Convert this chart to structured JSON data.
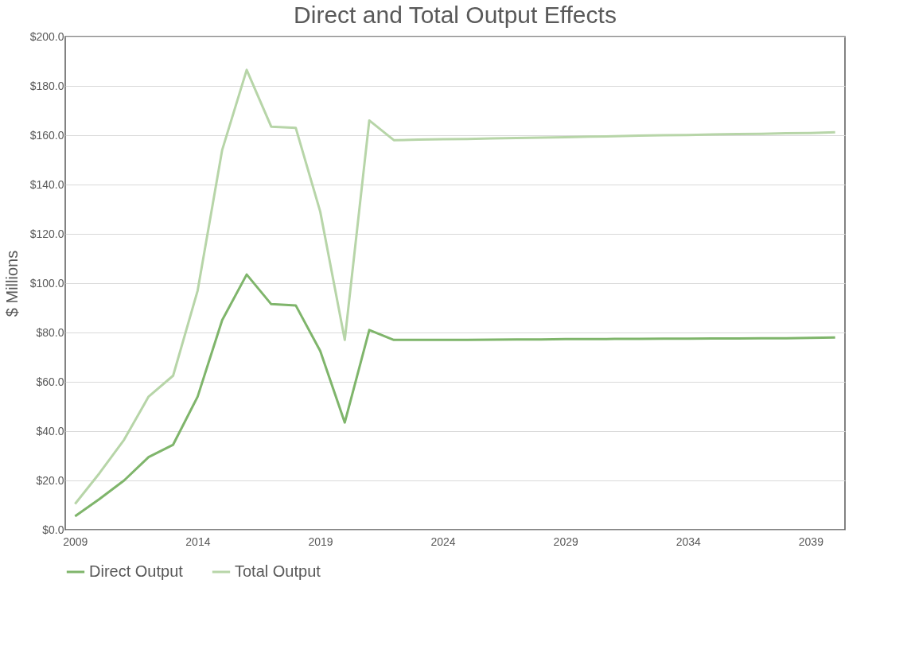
{
  "chart_data": {
    "type": "line",
    "title": "Direct and Total Output Effects",
    "ylabel": "$ Millions",
    "categories": [
      "2009",
      null,
      null,
      null,
      null,
      "2014",
      null,
      null,
      null,
      null,
      "2019",
      null,
      null,
      null,
      null,
      "2024",
      null,
      null,
      null,
      null,
      "2029",
      null,
      null,
      null,
      null,
      "2034",
      null,
      null,
      null,
      null,
      "2039",
      null
    ],
    "series": [
      {
        "name": "Direct Output",
        "color": "#7fb56b",
        "values": [
          5.5,
          12.5,
          20,
          29.5,
          34.5,
          54,
          85,
          103.5,
          91.5,
          91,
          72.5,
          43.5,
          81,
          77,
          77,
          77,
          77,
          77.1,
          77.2,
          77.2,
          77.3,
          77.3,
          77.4,
          77.4,
          77.5,
          77.5,
          77.6,
          77.6,
          77.7,
          77.7,
          77.8,
          78
        ]
      },
      {
        "name": "Total Output",
        "color": "#b7d5a8",
        "values": [
          10.5,
          23,
          36.5,
          54,
          62.5,
          97,
          154,
          186.5,
          163.5,
          163,
          129,
          77,
          166,
          158,
          158.2,
          158.4,
          158.5,
          158.7,
          158.9,
          159,
          159.2,
          159.4,
          159.6,
          159.8,
          160,
          160.1,
          160.3,
          160.5,
          160.6,
          160.8,
          160.9,
          161.2
        ]
      }
    ],
    "ylim": [
      0,
      200
    ],
    "yticks": [
      {
        "value": 0,
        "label": "$0.0"
      },
      {
        "value": 20,
        "label": "$20.0"
      },
      {
        "value": 40,
        "label": "$40.0"
      },
      {
        "value": 60,
        "label": "$60.0"
      },
      {
        "value": 80,
        "label": "$80.0"
      },
      {
        "value": 100,
        "label": "$100.0"
      },
      {
        "value": 120,
        "label": "$120.0"
      },
      {
        "value": 140,
        "label": "$140.0"
      },
      {
        "value": 160,
        "label": "$160.0"
      },
      {
        "value": 180,
        "label": "$180.0"
      },
      {
        "value": 200,
        "label": "$200.0"
      }
    ],
    "grid": "y",
    "legend": "bottom",
    "marker": "none",
    "line_style": "solid"
  }
}
